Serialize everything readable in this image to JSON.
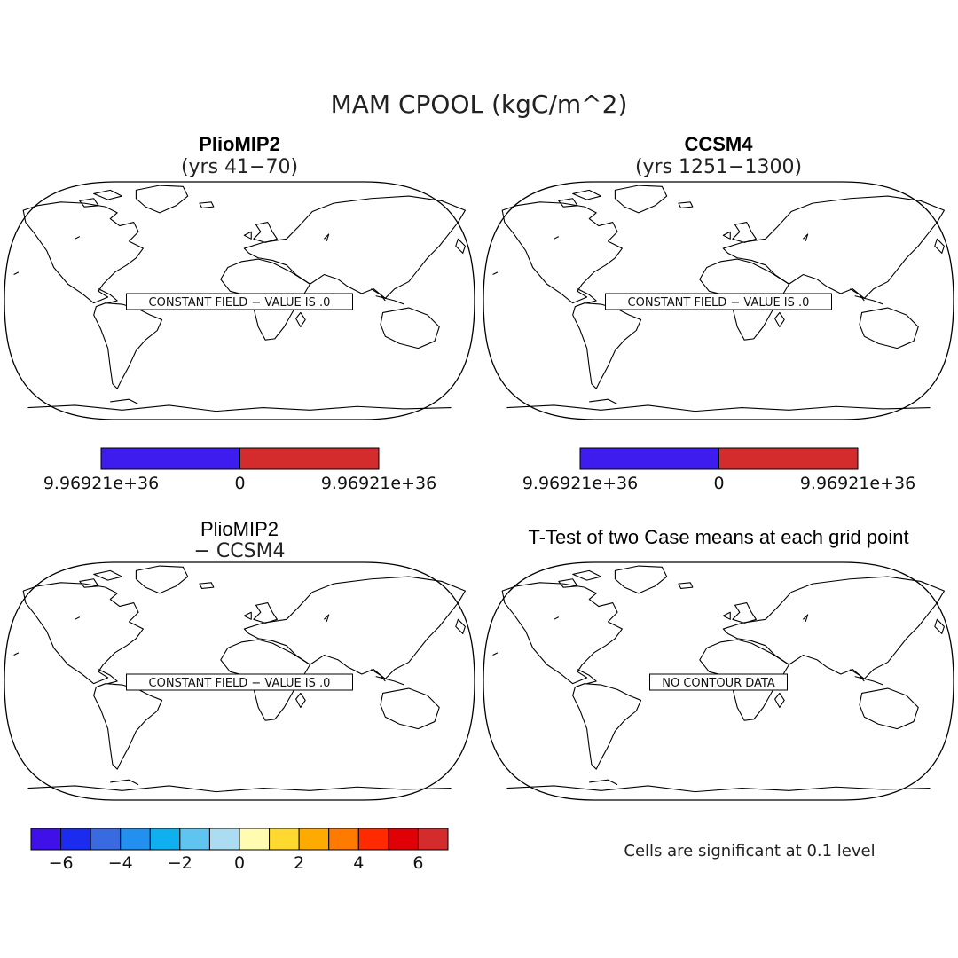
{
  "title": "MAM CPOOL (kgC/m^2)",
  "panels": [
    {
      "id": "pliomip2",
      "title": "PlioMIP2",
      "subtitle": "(yrs 41−70)",
      "message": "CONSTANT FIELD − VALUE IS .0"
    },
    {
      "id": "ccsm4",
      "title": "CCSM4",
      "subtitle": "(yrs 1251−1300)",
      "message": "CONSTANT FIELD − VALUE IS .0"
    },
    {
      "id": "difference",
      "title": "PlioMIP2",
      "subtitle": "− CCSM4",
      "message": "CONSTANT FIELD − VALUE IS .0"
    },
    {
      "id": "ttest",
      "title": "T-Test of two Case means at each grid point",
      "subtitle": "",
      "message": "NO CONTOUR DATA"
    }
  ],
  "colorbar_top_left": {
    "colors": [
      "#3e1cf0",
      "#d42c2c"
    ],
    "labels": [
      "9.96921e+36",
      "0",
      "9.96921e+36"
    ]
  },
  "colorbar_top_right": {
    "colors": [
      "#3e1cf0",
      "#d42c2c"
    ],
    "labels": [
      "9.96921e+36",
      "0",
      "9.96921e+36"
    ]
  },
  "colorbar_diff": {
    "colors": [
      "#4010e8",
      "#1b2cef",
      "#3a6ae0",
      "#2390f0",
      "#10b0f0",
      "#60c4f0",
      "#acdcf2",
      "#fffbb0",
      "#ffd830",
      "#ffaa00",
      "#ff7a00",
      "#ff2a00",
      "#e00008",
      "#d42c2c"
    ],
    "ticks": [
      {
        "label": "−6",
        "boundary": 1
      },
      {
        "label": "−4",
        "boundary": 3
      },
      {
        "label": "−2",
        "boundary": 5
      },
      {
        "label": "0",
        "boundary": 7
      },
      {
        "label": "2",
        "boundary": 9
      },
      {
        "label": "4",
        "boundary": 11
      },
      {
        "label": "6",
        "boundary": 13
      }
    ]
  },
  "ttest_note": "Cells are significant at 0.1 level"
}
